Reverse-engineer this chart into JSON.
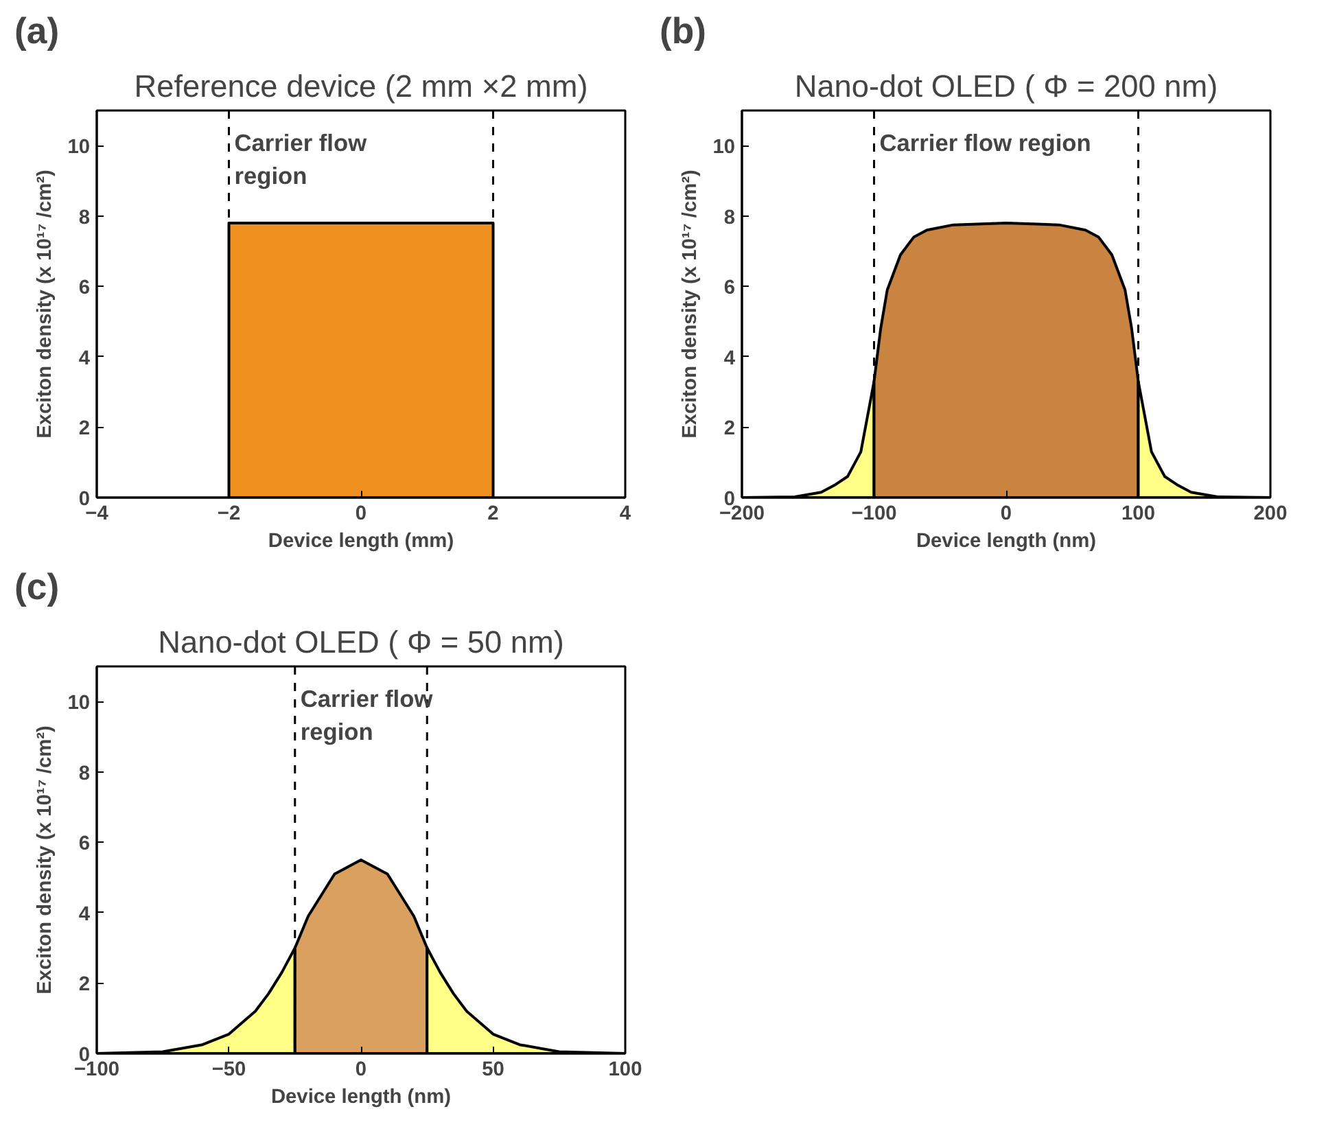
{
  "chart_data": [
    {
      "type": "area",
      "title": "Reference device (2 mm ×2 mm)",
      "xlabel": "Device length (mm)",
      "ylabel": "Exciton density (x 10¹⁷ /cm²)",
      "annotations": [
        "(a)",
        "Carrier flow\nregion"
      ],
      "xlim": [
        -4,
        4
      ],
      "xticks": [
        -4,
        -2,
        0,
        2,
        4
      ],
      "ylim": [
        0,
        11
      ],
      "yticks": [
        0,
        2,
        4,
        6,
        8,
        10
      ],
      "grid": false,
      "series": [
        {
          "x": [
            -2,
            -2,
            2,
            2
          ],
          "values": [
            0,
            7.8,
            7.8,
            0
          ],
          "color": "#f0901e"
        }
      ],
      "ref_lines": [
        {
          "axis": "x",
          "value": -2,
          "line_style": "dashed",
          "color": "#000000"
        },
        {
          "axis": "x",
          "value": 2,
          "line_style": "dashed",
          "color": "#000000"
        }
      ]
    },
    {
      "type": "area",
      "title": "Nano-dot OLED ( Φ = 200 nm)",
      "xlabel": "Device length (nm)",
      "ylabel": "Exciton density (x 10¹⁷ /cm²)",
      "annotations": [
        "(b)",
        "Carrier flow region"
      ],
      "xlim": [
        -200,
        200
      ],
      "xticks": [
        -200,
        -100,
        0,
        100,
        200
      ],
      "ylim": [
        0,
        11
      ],
      "yticks": [
        0,
        2,
        4,
        6,
        8,
        10
      ],
      "grid": false,
      "series": [
        {
          "x": [
            -200,
            -160,
            -140,
            -130,
            -120,
            -110,
            -100
          ],
          "values": [
            0,
            0.02,
            0.15,
            0.35,
            0.6,
            1.3,
            3.3
          ],
          "color": "#ffff88"
        },
        {
          "x": [
            -100,
            -95,
            -90,
            -80,
            -70,
            -60,
            -40,
            0,
            40,
            60,
            70,
            80,
            90,
            95,
            100
          ],
          "values": [
            3.3,
            4.8,
            5.9,
            6.9,
            7.4,
            7.6,
            7.75,
            7.8,
            7.75,
            7.6,
            7.4,
            6.9,
            5.9,
            4.8,
            3.3
          ],
          "color": "#c88440"
        },
        {
          "x": [
            100,
            110,
            120,
            130,
            140,
            160,
            200
          ],
          "values": [
            3.3,
            1.3,
            0.6,
            0.35,
            0.15,
            0.02,
            0
          ],
          "color": "#ffff88"
        }
      ],
      "ref_lines": [
        {
          "axis": "x",
          "value": -100,
          "line_style": "dashed",
          "color": "#000000"
        },
        {
          "axis": "x",
          "value": 100,
          "line_style": "dashed",
          "color": "#000000"
        }
      ]
    },
    {
      "type": "area",
      "title": "Nano-dot OLED ( Φ = 50 nm)",
      "xlabel": "Device length (nm)",
      "ylabel": "Exciton density (x 10¹⁷ /cm²)",
      "annotations": [
        "(c)",
        "Carrier flow\nregion"
      ],
      "xlim": [
        -100,
        100
      ],
      "xticks": [
        -100,
        -50,
        0,
        50,
        100
      ],
      "ylim": [
        0,
        11
      ],
      "yticks": [
        0,
        2,
        4,
        6,
        8,
        10
      ],
      "grid": false,
      "series": [
        {
          "x": [
            -100,
            -75,
            -60,
            -50,
            -40,
            -35,
            -30,
            -25
          ],
          "values": [
            0,
            0.05,
            0.25,
            0.55,
            1.2,
            1.7,
            2.3,
            3.0
          ],
          "color": "#ffff88"
        },
        {
          "x": [
            -25,
            -20,
            -10,
            0,
            10,
            20,
            25
          ],
          "values": [
            3.0,
            3.9,
            5.1,
            5.5,
            5.1,
            3.9,
            3.0
          ],
          "color": "#d9a060"
        },
        {
          "x": [
            25,
            30,
            35,
            40,
            50,
            60,
            75,
            100
          ],
          "values": [
            3.0,
            2.3,
            1.7,
            1.2,
            0.55,
            0.25,
            0.05,
            0
          ],
          "color": "#ffff88"
        }
      ],
      "ref_lines": [
        {
          "axis": "x",
          "value": -25,
          "line_style": "dashed",
          "color": "#000000"
        },
        {
          "axis": "x",
          "value": 25,
          "line_style": "dashed",
          "color": "#000000"
        }
      ]
    }
  ]
}
